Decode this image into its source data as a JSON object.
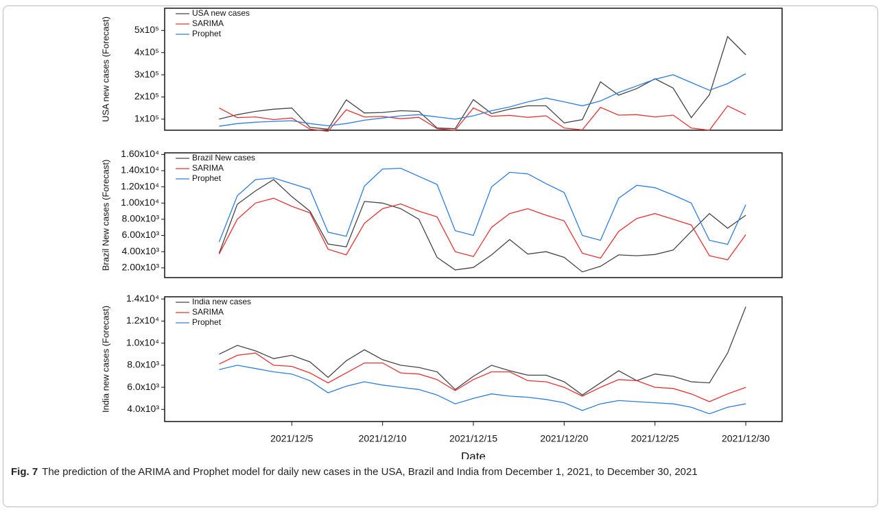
{
  "chart_data": [
    {
      "type": "line",
      "ylabel": "USA new cases (Forecast)",
      "x": [
        "2021/12/1",
        "2021/12/2",
        "2021/12/3",
        "2021/12/4",
        "2021/12/5",
        "2021/12/6",
        "2021/12/7",
        "2021/12/8",
        "2021/12/9",
        "2021/12/10",
        "2021/12/11",
        "2021/12/12",
        "2021/12/13",
        "2021/12/14",
        "2021/12/15",
        "2021/12/16",
        "2021/12/17",
        "2021/12/18",
        "2021/12/19",
        "2021/12/20",
        "2021/12/21",
        "2021/12/22",
        "2021/12/23",
        "2021/12/24",
        "2021/12/25",
        "2021/12/26",
        "2021/12/27",
        "2021/12/28",
        "2021/12/29",
        "2021/12/30"
      ],
      "xlim": [
        "2021/11/28",
        "2022/1/1"
      ],
      "ylim": [
        50000,
        600000
      ],
      "yticks": [
        {
          "value": 100000,
          "label": "1x10⁵"
        },
        {
          "value": 200000,
          "label": "2x10⁵"
        },
        {
          "value": 300000,
          "label": "3x10⁵"
        },
        {
          "value": 400000,
          "label": "4x10⁵"
        },
        {
          "value": 500000,
          "label": "5x10⁵"
        }
      ],
      "legend": "upper left",
      "grid": false,
      "series": [
        {
          "name": "USA new cases",
          "color": "#444444",
          "values": [
            100000,
            120000,
            135000,
            145000,
            150000,
            63000,
            55000,
            187000,
            128000,
            130000,
            138000,
            135000,
            60000,
            57000,
            188000,
            125000,
            145000,
            160000,
            160000,
            83000,
            98000,
            268000,
            208000,
            238000,
            282000,
            240000,
            107000,
            210000,
            472000,
            390000
          ]
        },
        {
          "name": "SARIMA",
          "color": "#e8302f",
          "values": [
            150000,
            107000,
            110000,
            98000,
            105000,
            55000,
            45000,
            142000,
            110000,
            112000,
            102000,
            108000,
            57000,
            50000,
            150000,
            113000,
            117000,
            108000,
            115000,
            60000,
            52000,
            153000,
            118000,
            120000,
            110000,
            118000,
            60000,
            50000,
            160000,
            120000
          ]
        },
        {
          "name": "Prophet",
          "color": "#2a7de1",
          "values": [
            68000,
            80000,
            86000,
            90000,
            93000,
            80000,
            70000,
            80000,
            95000,
            105000,
            115000,
            120000,
            110000,
            100000,
            115000,
            138000,
            155000,
            178000,
            195000,
            178000,
            160000,
            182000,
            220000,
            250000,
            280000,
            300000,
            265000,
            230000,
            260000,
            305000
          ]
        }
      ]
    },
    {
      "type": "line",
      "ylabel": "Brazil New cases (Forecast)",
      "x": [
        "2021/12/1",
        "2021/12/2",
        "2021/12/3",
        "2021/12/4",
        "2021/12/5",
        "2021/12/6",
        "2021/12/7",
        "2021/12/8",
        "2021/12/9",
        "2021/12/10",
        "2021/12/11",
        "2021/12/12",
        "2021/12/13",
        "2021/12/14",
        "2021/12/15",
        "2021/12/16",
        "2021/12/17",
        "2021/12/18",
        "2021/12/19",
        "2021/12/20",
        "2021/12/21",
        "2021/12/22",
        "2021/12/23",
        "2021/12/24",
        "2021/12/25",
        "2021/12/26",
        "2021/12/27",
        "2021/12/28",
        "2021/12/29",
        "2021/12/30"
      ],
      "xlim": [
        "2021/11/28",
        "2022/1/1"
      ],
      "ylim": [
        800,
        16200
      ],
      "yticks": [
        {
          "value": 2000,
          "label": "2.00x10³"
        },
        {
          "value": 4000,
          "label": "4.00x10³"
        },
        {
          "value": 6000,
          "label": "6.00x10³"
        },
        {
          "value": 8000,
          "label": "8.00x10³"
        },
        {
          "value": 10000,
          "label": "1.00x10⁴"
        },
        {
          "value": 12000,
          "label": "1.20x10⁴"
        },
        {
          "value": 14000,
          "label": "1.40x10⁴"
        },
        {
          "value": 16000,
          "label": "1.60x10⁴"
        }
      ],
      "legend": "upper left",
      "grid": false,
      "series": [
        {
          "name": "Brazil New cases",
          "color": "#444444",
          "values": [
            3800,
            9850,
            11500,
            12900,
            10800,
            9000,
            4950,
            4600,
            10200,
            10000,
            9300,
            8000,
            3300,
            1750,
            2050,
            3600,
            5500,
            3700,
            4000,
            3300,
            1500,
            2200,
            3600,
            3500,
            3650,
            4200,
            6500,
            8700,
            6900,
            8500
          ]
        },
        {
          "name": "SARIMA",
          "color": "#e8302f",
          "values": [
            3700,
            8000,
            10000,
            10600,
            9600,
            8800,
            4300,
            3600,
            7500,
            9300,
            9900,
            9000,
            8300,
            4000,
            3400,
            7000,
            8700,
            9300,
            8500,
            7800,
            3800,
            3200,
            6500,
            8100,
            8700,
            8000,
            7300,
            3500,
            3000,
            6100
          ]
        },
        {
          "name": "Prophet",
          "color": "#2a7de1",
          "values": [
            5200,
            10900,
            12900,
            13100,
            12400,
            11700,
            6400,
            5900,
            12100,
            14200,
            14300,
            13300,
            12300,
            6600,
            6000,
            12000,
            13800,
            13600,
            12400,
            11300,
            6000,
            5400,
            10600,
            12200,
            11900,
            11000,
            10000,
            5400,
            4900,
            9800
          ]
        }
      ]
    },
    {
      "type": "line",
      "ylabel": "India new cases (Forecast)",
      "xlabel": "Date",
      "x": [
        "2021/12/1",
        "2021/12/2",
        "2021/12/3",
        "2021/12/4",
        "2021/12/5",
        "2021/12/6",
        "2021/12/7",
        "2021/12/8",
        "2021/12/9",
        "2021/12/10",
        "2021/12/11",
        "2021/12/12",
        "2021/12/13",
        "2021/12/14",
        "2021/12/15",
        "2021/12/16",
        "2021/12/17",
        "2021/12/18",
        "2021/12/19",
        "2021/12/20",
        "2021/12/21",
        "2021/12/22",
        "2021/12/23",
        "2021/12/24",
        "2021/12/25",
        "2021/12/26",
        "2021/12/27",
        "2021/12/28",
        "2021/12/29",
        "2021/12/30"
      ],
      "xlim": [
        "2021/11/28",
        "2022/1/1"
      ],
      "xticks": [
        "2021/12/5",
        "2021/12/10",
        "2021/12/15",
        "2021/12/20",
        "2021/12/25",
        "2021/12/30"
      ],
      "ylim": [
        2900,
        14200
      ],
      "yticks": [
        {
          "value": 4000,
          "label": "4.0x10³"
        },
        {
          "value": 6000,
          "label": "6.0x10³"
        },
        {
          "value": 8000,
          "label": "8.0x10³"
        },
        {
          "value": 10000,
          "label": "1.0x10⁴"
        },
        {
          "value": 12000,
          "label": "1.2x10⁴"
        },
        {
          "value": 14000,
          "label": "1.4x10⁴"
        }
      ],
      "legend": "upper left",
      "grid": false,
      "series": [
        {
          "name": "India new cases",
          "color": "#444444",
          "values": [
            9000,
            9800,
            9300,
            8600,
            8900,
            8300,
            6900,
            8400,
            9400,
            8500,
            8000,
            7800,
            7400,
            5800,
            7000,
            8000,
            7500,
            7100,
            7100,
            6500,
            5300,
            6400,
            7500,
            6600,
            7200,
            7000,
            6500,
            6400,
            9100,
            13300
          ]
        },
        {
          "name": "SARIMA",
          "color": "#e8302f",
          "values": [
            8100,
            8900,
            9100,
            8000,
            7900,
            7300,
            6400,
            7300,
            8200,
            8200,
            7300,
            7200,
            6700,
            5700,
            6700,
            7400,
            7400,
            6600,
            6500,
            6000,
            5200,
            6000,
            6700,
            6600,
            6000,
            5900,
            5400,
            4700,
            5400,
            6000
          ]
        },
        {
          "name": "Prophet",
          "color": "#2a7de1",
          "values": [
            7600,
            8000,
            7700,
            7400,
            7200,
            6600,
            5500,
            6100,
            6500,
            6200,
            6000,
            5800,
            5300,
            4500,
            5000,
            5400,
            5200,
            5100,
            4900,
            4600,
            3900,
            4500,
            4800,
            4700,
            4600,
            4500,
            4200,
            3600,
            4200,
            4500
          ]
        }
      ]
    }
  ],
  "caption": {
    "label": "Fig. 7",
    "text": "The prediction of the ARIMA and Prophet model for daily new cases in the USA, Brazil and India from December 1, 2021, to December 30, 2021"
  }
}
